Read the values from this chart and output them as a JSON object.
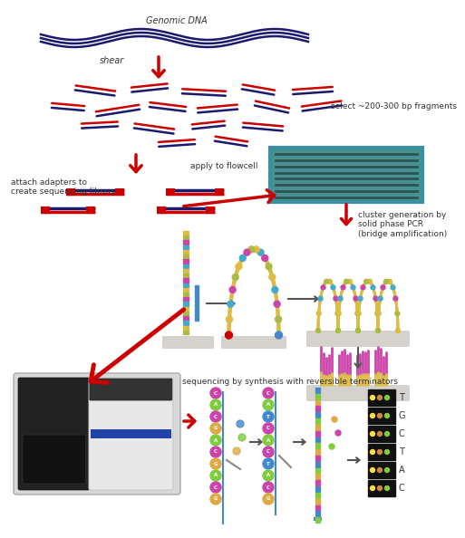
{
  "bg_color": "#ffffff",
  "navy": "#1a1a6e",
  "red": "#cc0000",
  "dark_red": "#aa0000",
  "labels": {
    "genomic_dna": "Genomic DNA",
    "shear": "shear",
    "select": "select ~200-300 bp fragments",
    "attach": "attach adapters to\ncreate sequencing library",
    "apply": "apply to flowcell",
    "cluster": "cluster generation by\nsolid phase PCR\n(bridge amplification)",
    "sequencing": "sequencing by synthesis with reversible terminators"
  },
  "bases_right": [
    "T",
    "G",
    "C",
    "T",
    "A",
    "C"
  ],
  "nuc_colors": {
    "A": "#80cc40",
    "T": "#4488cc",
    "G": "#ddaa44",
    "C": "#cc44aa"
  },
  "flowcell_border": "#3a8fa0",
  "flowcell_bg": "#4a9090",
  "flowcell_line": "#2a5555",
  "platform_color": "#bbbbbb",
  "cluster_bottom_color": "#88aacc"
}
